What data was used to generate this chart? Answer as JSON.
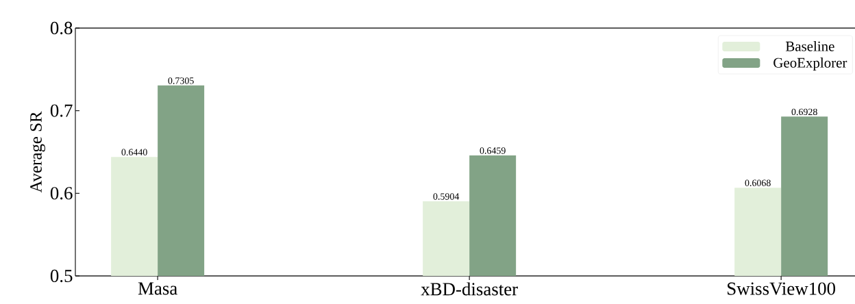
{
  "chart_data": {
    "type": "bar",
    "ylabel": "Average SR",
    "categories": [
      "Masa",
      "xBD-disaster",
      "SwissView100"
    ],
    "series": [
      {
        "name": "Baseline",
        "color": "#e2efda",
        "values": [
          0.644,
          0.5904,
          0.6068
        ],
        "value_labels": [
          "0.6440",
          "0.5904",
          "0.6068"
        ]
      },
      {
        "name": "GeoExplorer",
        "color": "#82a386",
        "values": [
          0.7305,
          0.6459,
          0.6928
        ],
        "value_labels": [
          "0.7305",
          "0.6459",
          "0.6928"
        ]
      }
    ],
    "ylim": [
      0.5,
      0.8
    ],
    "yticks": [
      0.5,
      0.6,
      0.7,
      0.8
    ],
    "grid": false,
    "legend": "top right"
  }
}
